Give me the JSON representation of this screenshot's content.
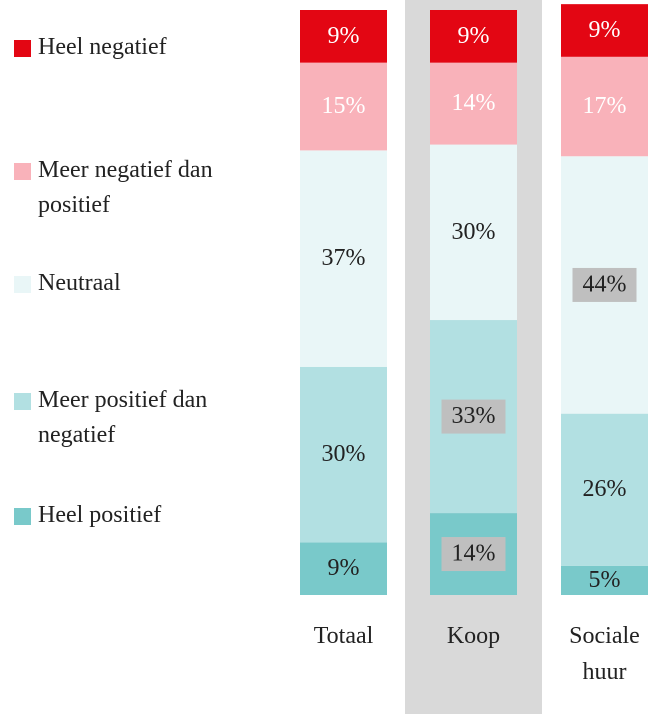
{
  "chart_data": {
    "type": "stacked_bar",
    "categories": [
      "Totaal",
      "Koop",
      "Sociale huur"
    ],
    "ylim": [
      0,
      100
    ],
    "highlight_category": "Koop",
    "series": [
      {
        "name": "Heel negatief",
        "color": "#e30613",
        "label_color": "#ffffff",
        "values": [
          9,
          9,
          9
        ],
        "value_labels": [
          "9%",
          "9%",
          "9%"
        ],
        "boxed": [
          false,
          false,
          false
        ]
      },
      {
        "name": "Meer negatief dan positief",
        "color": "#f9b2ba",
        "label_color": "#ffffff",
        "values": [
          15,
          14,
          17
        ],
        "value_labels": [
          "15%",
          "14%",
          "17%"
        ],
        "boxed": [
          false,
          false,
          false
        ]
      },
      {
        "name": "Neutraal",
        "color": "#e9f6f7",
        "label_color": "#222222",
        "values": [
          37,
          30,
          44
        ],
        "value_labels": [
          "37%",
          "30%",
          "44%"
        ],
        "boxed": [
          false,
          false,
          true
        ]
      },
      {
        "name": "Meer positief dan negatief",
        "color": "#b2e0e2",
        "label_color": "#222222",
        "values": [
          30,
          33,
          26
        ],
        "value_labels": [
          "30%",
          "33%",
          "26%"
        ],
        "boxed": [
          false,
          true,
          false
        ]
      },
      {
        "name": "Heel positief",
        "color": "#79c9ca",
        "label_color": "#222222",
        "values": [
          9,
          14,
          5
        ],
        "value_labels": [
          "9%",
          "14%",
          "5%"
        ],
        "boxed": [
          false,
          true,
          false
        ]
      }
    ]
  }
}
